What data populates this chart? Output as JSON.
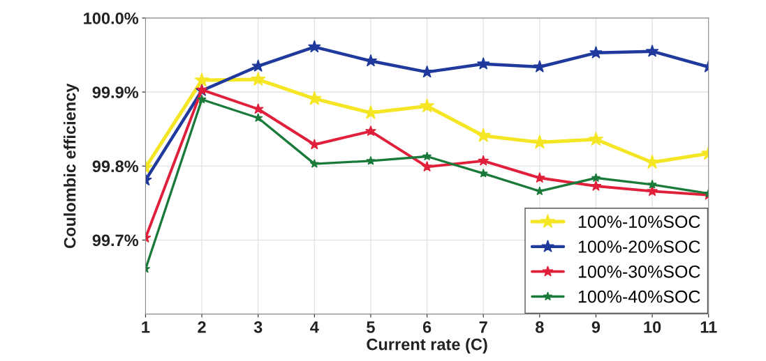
{
  "chart_data": {
    "type": "line",
    "xlabel": "Current rate (C)",
    "ylabel": "Coulombic efficiency",
    "x": [
      1,
      2,
      3,
      4,
      5,
      6,
      7,
      8,
      9,
      10,
      11
    ],
    "series": [
      {
        "name": "100%-10%SOC",
        "color": "#f5e625",
        "values": [
          99.798,
          99.916,
          99.917,
          99.891,
          99.872,
          99.881,
          99.841,
          99.832,
          99.836,
          99.805,
          99.817
        ]
      },
      {
        "name": "100%-20%SOC",
        "color": "#1f3a9c",
        "values": [
          99.781,
          99.902,
          99.935,
          99.961,
          99.942,
          99.927,
          99.938,
          99.934,
          99.953,
          99.955,
          99.934
        ]
      },
      {
        "name": "100%-30%SOC",
        "color": "#e0203a",
        "values": [
          99.703,
          99.903,
          99.877,
          99.829,
          99.847,
          99.799,
          99.807,
          99.784,
          99.773,
          99.766,
          99.761
        ]
      },
      {
        "name": "100%-40%SOC",
        "color": "#1a7a3a",
        "values": [
          99.661,
          99.89,
          99.865,
          99.803,
          99.807,
          99.813,
          99.79,
          99.766,
          99.784,
          99.775,
          99.763
        ]
      }
    ],
    "xlim": [
      1,
      11
    ],
    "xticks": [
      1,
      2,
      3,
      4,
      5,
      6,
      7,
      8,
      9,
      10,
      11
    ],
    "ylim": [
      99.6,
      100.0
    ],
    "yticks": [
      {
        "value": 99.7,
        "label": "99.7%"
      },
      {
        "value": 99.8,
        "label": "99.8%"
      },
      {
        "value": 99.9,
        "label": "99.9%"
      },
      {
        "value": 100.0,
        "label": "100.0%"
      }
    ],
    "grid": true,
    "legend": "bottom right",
    "marker": "star",
    "line_style": "solid"
  }
}
